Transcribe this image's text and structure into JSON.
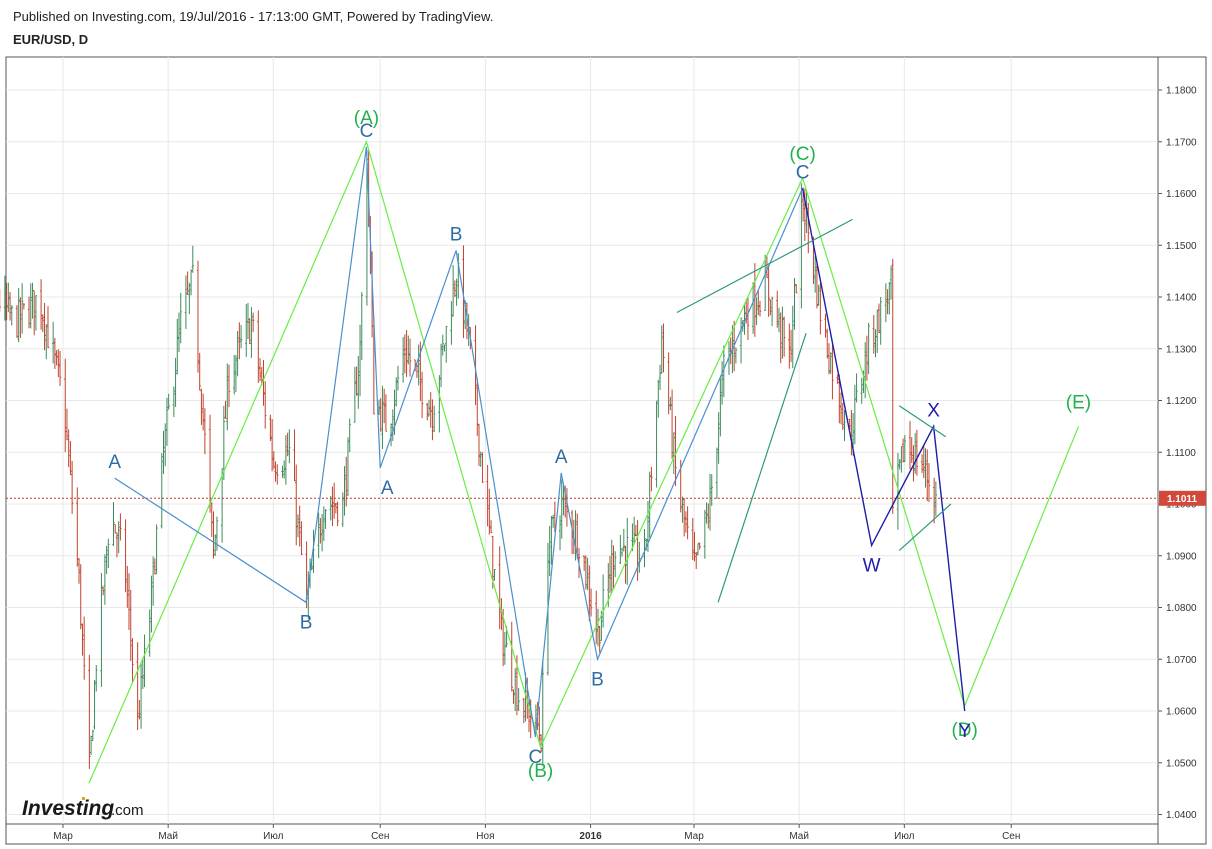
{
  "header": {
    "published": "Published on Investing.com, 19/Jul/2016 - 17:13:00 GMT, Powered by TradingView.",
    "symbol": "EUR/USD, D"
  },
  "logo": {
    "brand": "Investing",
    "suffix": ".com"
  },
  "colors": {
    "candle_up": "#3f8a5b",
    "candle_down": "#c0432f",
    "primary_wave": "#22b14c",
    "primary_wave_line": "#66ee44",
    "minor_wave": "#2e6da4",
    "minor_wave_line": "#4a8fcf",
    "wxy": "#1e1ea8",
    "channel": "#2e9a7a",
    "price_line": "#c0392b",
    "grid": "#e8e8e8"
  },
  "chart_data": {
    "type": "candlestick",
    "symbol": "EUR/USD",
    "timeframe": "D",
    "ylim": [
      1.0375,
      1.1825
    ],
    "y_ticks": [
      "1.1800",
      "1.1700",
      "1.1600",
      "1.1500",
      "1.1400",
      "1.1300",
      "1.1200",
      "1.1100",
      "1.1000",
      "1.0900",
      "1.0800",
      "1.0700",
      "1.0600",
      "1.0500",
      "1.0400"
    ],
    "x_ticks": [
      "Мар",
      "Май",
      "Июл",
      "Сен",
      "Ноя",
      "2016",
      "Мар",
      "Май",
      "Июл",
      "Сен"
    ],
    "x_tick_dates": [
      "2015-03-01",
      "2015-05-01",
      "2015-07-01",
      "2015-09-01",
      "2015-11-01",
      "2016-01-01",
      "2016-03-01",
      "2016-05-01",
      "2016-07-01",
      "2016-09-01"
    ],
    "last_price": {
      "value": 1.1011,
      "label": "1.1011"
    },
    "price_path": [
      [
        "2015-01-01",
        1.133
      ],
      [
        "2015-01-15",
        1.143
      ],
      [
        "2015-02-01",
        1.135
      ],
      [
        "2015-02-15",
        1.14
      ],
      [
        "2015-03-01",
        1.12
      ],
      [
        "2015-03-10",
        1.085
      ],
      [
        "2015-03-16",
        1.048
      ],
      [
        "2015-03-20",
        1.07
      ],
      [
        "2015-03-28",
        1.098
      ],
      [
        "2015-04-05",
        1.09
      ],
      [
        "2015-04-13",
        1.058
      ],
      [
        "2015-04-20",
        1.078
      ],
      [
        "2015-04-28",
        1.11
      ],
      [
        "2015-05-08",
        1.135
      ],
      [
        "2015-05-15",
        1.143
      ],
      [
        "2015-05-27",
        1.09
      ],
      [
        "2015-06-05",
        1.125
      ],
      [
        "2015-06-18",
        1.135
      ],
      [
        "2015-07-01",
        1.108
      ],
      [
        "2015-07-10",
        1.11
      ],
      [
        "2015-07-20",
        1.081
      ],
      [
        "2015-07-30",
        1.1
      ],
      [
        "2015-08-10",
        1.1
      ],
      [
        "2015-08-20",
        1.13
      ],
      [
        "2015-08-24",
        1.168
      ],
      [
        "2015-08-28",
        1.12
      ],
      [
        "2015-09-05",
        1.115
      ],
      [
        "2015-09-15",
        1.13
      ],
      [
        "2015-10-01",
        1.118
      ],
      [
        "2015-10-15",
        1.145
      ],
      [
        "2015-10-22",
        1.132
      ],
      [
        "2015-11-01",
        1.1
      ],
      [
        "2015-11-10",
        1.075
      ],
      [
        "2015-11-20",
        1.063
      ],
      [
        "2015-12-01",
        1.057
      ],
      [
        "2015-12-03",
        1.055
      ],
      [
        "2015-12-07",
        1.092
      ],
      [
        "2015-12-15",
        1.1
      ],
      [
        "2015-12-25",
        1.093
      ],
      [
        "2016-01-05",
        1.075
      ],
      [
        "2016-01-15",
        1.092
      ],
      [
        "2016-02-01",
        1.09
      ],
      [
        "2016-02-11",
        1.132
      ],
      [
        "2016-02-20",
        1.103
      ],
      [
        "2016-03-01",
        1.087
      ],
      [
        "2016-03-10",
        1.1
      ],
      [
        "2016-03-18",
        1.126
      ],
      [
        "2016-04-01",
        1.138
      ],
      [
        "2016-04-12",
        1.142
      ],
      [
        "2016-04-25",
        1.128
      ],
      [
        "2016-05-03",
        1.159
      ],
      [
        "2016-05-15",
        1.133
      ],
      [
        "2016-05-30",
        1.113
      ],
      [
        "2016-06-10",
        1.131
      ],
      [
        "2016-06-23",
        1.142
      ],
      [
        "2016-06-24",
        1.098
      ],
      [
        "2016-07-01",
        1.112
      ],
      [
        "2016-07-12",
        1.107
      ],
      [
        "2016-07-19",
        1.101
      ]
    ],
    "wave_labels": [
      {
        "group": "primary",
        "text": "(A)",
        "date": "2015-08-24",
        "price": 1.17
      },
      {
        "group": "primary",
        "text": "(B)",
        "date": "2015-12-03",
        "price": 1.053
      },
      {
        "group": "primary",
        "text": "(C)",
        "date": "2016-05-03",
        "price": 1.163
      },
      {
        "group": "primary",
        "text": "(D)",
        "date": "2016-08-05",
        "price": 1.061
      },
      {
        "group": "primary",
        "text": "(E)",
        "date": "2016-10-10",
        "price": 1.115
      },
      {
        "group": "minor",
        "text": "A",
        "date": "2015-03-31",
        "price": 1.105
      },
      {
        "group": "minor",
        "text": "B",
        "date": "2015-07-20",
        "price": 1.081
      },
      {
        "group": "minor",
        "text": "C",
        "date": "2015-08-24",
        "price": 1.169
      },
      {
        "group": "minor",
        "text": "A",
        "date": "2015-09-01",
        "price": 1.107
      },
      {
        "group": "minor",
        "text": "B",
        "date": "2015-10-15",
        "price": 1.149
      },
      {
        "group": "minor",
        "text": "C",
        "date": "2015-11-30",
        "price": 1.055
      },
      {
        "group": "minor",
        "text": "A",
        "date": "2015-12-15",
        "price": 1.106
      },
      {
        "group": "minor",
        "text": "B",
        "date": "2016-01-05",
        "price": 1.07
      },
      {
        "group": "minor",
        "text": "C",
        "date": "2016-05-03",
        "price": 1.161
      },
      {
        "group": "wxy",
        "text": "W",
        "date": "2016-06-12",
        "price": 1.092
      },
      {
        "group": "wxy",
        "text": "X",
        "date": "2016-07-18",
        "price": 1.115
      },
      {
        "group": "wxy",
        "text": "Y",
        "date": "2016-08-05",
        "price": 1.06
      }
    ],
    "wave_lines": [
      {
        "group": "primary",
        "points": [
          [
            "2015-03-16",
            1.046
          ],
          [
            "2015-08-24",
            1.17
          ],
          [
            "2015-12-03",
            1.053
          ],
          [
            "2016-05-03",
            1.163
          ],
          [
            "2016-08-05",
            1.061
          ],
          [
            "2016-10-10",
            1.115
          ]
        ]
      },
      {
        "group": "minor",
        "points": [
          [
            "2015-03-31",
            1.105
          ],
          [
            "2015-07-20",
            1.081
          ],
          [
            "2015-08-24",
            1.169
          ],
          [
            "2015-09-01",
            1.107
          ],
          [
            "2015-10-15",
            1.149
          ],
          [
            "2015-11-30",
            1.055
          ],
          [
            "2015-12-15",
            1.106
          ],
          [
            "2016-01-05",
            1.07
          ],
          [
            "2016-05-03",
            1.161
          ]
        ]
      },
      {
        "group": "wxy",
        "points": [
          [
            "2016-05-03",
            1.161
          ],
          [
            "2016-06-12",
            1.092
          ],
          [
            "2016-07-18",
            1.115
          ],
          [
            "2016-08-05",
            1.06
          ]
        ]
      },
      {
        "group": "channel",
        "points": [
          [
            "2016-02-20",
            1.137
          ],
          [
            "2016-06-01",
            1.155
          ]
        ]
      },
      {
        "group": "channel",
        "points": [
          [
            "2016-03-15",
            1.081
          ],
          [
            "2016-05-05",
            1.133
          ]
        ]
      },
      {
        "group": "channel",
        "points": [
          [
            "2016-06-28",
            1.119
          ],
          [
            "2016-07-25",
            1.113
          ]
        ]
      },
      {
        "group": "channel",
        "points": [
          [
            "2016-06-28",
            1.091
          ],
          [
            "2016-07-28",
            1.1
          ]
        ]
      }
    ]
  }
}
